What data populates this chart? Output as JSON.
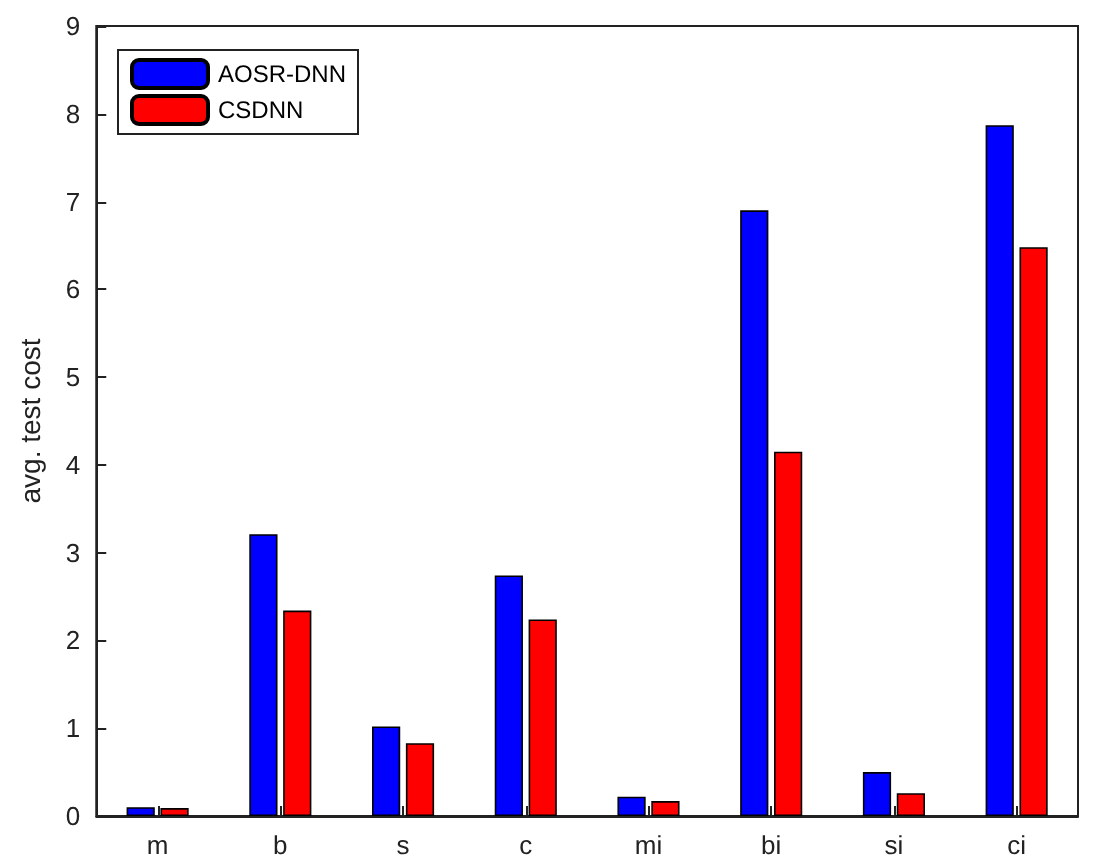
{
  "chart_data": {
    "type": "bar",
    "ylabel": "avg. test cost",
    "categories": [
      "m",
      "b",
      "s",
      "c",
      "mi",
      "bi",
      "si",
      "ci"
    ],
    "series": [
      {
        "name": "AOSR-DNN",
        "color": "#0000ff",
        "values": [
          0.1,
          3.21,
          1.02,
          2.74,
          0.22,
          6.9,
          0.5,
          7.87
        ]
      },
      {
        "name": "CSDNN",
        "color": "#ff0000",
        "values": [
          0.09,
          2.34,
          0.83,
          2.24,
          0.17,
          4.15,
          0.26,
          6.48
        ]
      }
    ],
    "ylim": [
      0,
      9
    ],
    "yticks": [
      0,
      1,
      2,
      3,
      4,
      5,
      6,
      7,
      8,
      9
    ],
    "grid": false,
    "legend": "top left"
  }
}
